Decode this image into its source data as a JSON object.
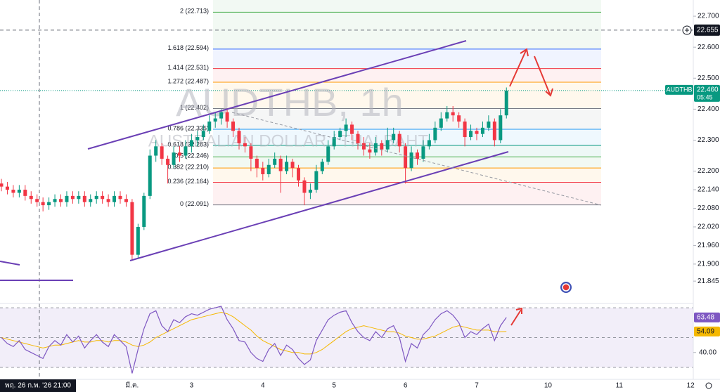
{
  "chart_data": {
    "type": "candlestick",
    "title": "AUDTHB, 1h",
    "subtitle": "AUSTRALIAN DOLLAR / THAI BAHT",
    "up_color": "#089981",
    "down_color": "#f23645",
    "categories": [
      null,
      null,
      null,
      null,
      null,
      null,
      null,
      null,
      null,
      null,
      null,
      null,
      null,
      null,
      null,
      null,
      null,
      null,
      null,
      null,
      null,
      null,
      "มี.ค.",
      null,
      null,
      null,
      null,
      null,
      null,
      null,
      null,
      null,
      "3",
      null,
      null,
      null,
      null,
      null,
      null,
      null,
      null,
      null,
      null,
      null,
      "4",
      null,
      null,
      null,
      null,
      null,
      null,
      null,
      null,
      null,
      null,
      null,
      "5",
      null,
      null,
      null,
      null,
      null,
      null,
      null,
      null,
      null,
      null,
      null,
      "6",
      null,
      null,
      null,
      null,
      null,
      null,
      null,
      null,
      null,
      null,
      null,
      "7",
      null,
      null,
      null,
      null,
      null,
      null,
      null,
      null,
      null,
      null,
      null,
      "10",
      null,
      null,
      null,
      null,
      null,
      null,
      null,
      null,
      null,
      null,
      null,
      "11",
      null,
      null,
      null,
      null,
      null,
      null,
      null,
      null,
      null,
      null,
      null,
      "12"
    ],
    "ohlc": [
      [
        22.16,
        22.175,
        22.135,
        22.15
      ],
      [
        22.15,
        22.165,
        22.125,
        22.14
      ],
      [
        22.14,
        22.155,
        22.115,
        22.13
      ],
      [
        22.13,
        22.155,
        22.115,
        22.14
      ],
      [
        22.14,
        22.155,
        22.105,
        22.12
      ],
      [
        22.12,
        22.135,
        22.095,
        22.11
      ],
      [
        22.11,
        22.125,
        22.085,
        22.1
      ],
      [
        22.1,
        22.115,
        22.07,
        22.09
      ],
      [
        22.09,
        22.115,
        22.075,
        22.1
      ],
      [
        22.1,
        22.125,
        22.085,
        22.11
      ],
      [
        22.11,
        22.125,
        22.085,
        22.1
      ],
      [
        22.1,
        22.135,
        22.085,
        22.12
      ],
      [
        22.12,
        22.135,
        22.095,
        22.11
      ],
      [
        22.11,
        22.135,
        22.095,
        22.12
      ],
      [
        22.12,
        22.135,
        22.085,
        22.1
      ],
      [
        22.1,
        22.125,
        22.085,
        22.11
      ],
      [
        22.11,
        22.135,
        22.095,
        22.12
      ],
      [
        22.12,
        22.135,
        22.095,
        22.11
      ],
      [
        22.11,
        22.125,
        22.085,
        22.1
      ],
      [
        22.1,
        22.135,
        22.085,
        22.12
      ],
      [
        22.12,
        22.135,
        22.095,
        22.11
      ],
      [
        22.11,
        22.125,
        22.085,
        22.1
      ],
      [
        22.1,
        22.11,
        21.915,
        21.93
      ],
      [
        21.93,
        22.03,
        21.92,
        22.02
      ],
      [
        22.02,
        22.13,
        22.01,
        22.12
      ],
      [
        22.12,
        22.27,
        22.11,
        22.25
      ],
      [
        22.25,
        22.3,
        22.23,
        22.28
      ],
      [
        22.28,
        22.29,
        22.22,
        22.24
      ],
      [
        22.24,
        22.25,
        22.16,
        22.22
      ],
      [
        22.22,
        22.28,
        22.21,
        22.26
      ],
      [
        22.26,
        22.28,
        22.23,
        22.25
      ],
      [
        22.25,
        22.3,
        22.24,
        22.28
      ],
      [
        22.28,
        22.32,
        22.26,
        22.3
      ],
      [
        22.3,
        22.33,
        22.28,
        22.31
      ],
      [
        22.31,
        22.35,
        22.3,
        22.33
      ],
      [
        22.33,
        22.38,
        22.32,
        22.36
      ],
      [
        22.36,
        22.39,
        22.34,
        22.37
      ],
      [
        22.37,
        22.4,
        22.35,
        22.39
      ],
      [
        22.39,
        22.4,
        22.34,
        22.36
      ],
      [
        22.36,
        22.37,
        22.31,
        22.33
      ],
      [
        22.33,
        22.34,
        22.27,
        22.29
      ],
      [
        22.29,
        22.31,
        22.26,
        22.28
      ],
      [
        22.28,
        22.29,
        22.2,
        22.24
      ],
      [
        22.24,
        22.25,
        22.18,
        22.21
      ],
      [
        22.21,
        22.23,
        22.17,
        22.19
      ],
      [
        22.19,
        22.24,
        22.18,
        22.22
      ],
      [
        22.22,
        22.26,
        22.21,
        22.24
      ],
      [
        22.24,
        22.25,
        22.13,
        22.2
      ],
      [
        22.2,
        22.25,
        22.19,
        22.23
      ],
      [
        22.23,
        22.24,
        22.18,
        22.21
      ],
      [
        22.21,
        22.22,
        22.15,
        22.17
      ],
      [
        22.17,
        22.18,
        22.09,
        22.13
      ],
      [
        22.13,
        22.16,
        22.11,
        22.14
      ],
      [
        22.14,
        22.22,
        22.13,
        22.2
      ],
      [
        22.2,
        22.24,
        22.19,
        22.23
      ],
      [
        22.23,
        22.3,
        22.22,
        22.28
      ],
      [
        22.28,
        22.33,
        22.27,
        22.31
      ],
      [
        22.31,
        22.34,
        22.3,
        22.33
      ],
      [
        22.33,
        22.37,
        22.31,
        22.35
      ],
      [
        22.35,
        22.36,
        22.3,
        22.32
      ],
      [
        22.32,
        22.33,
        22.27,
        22.29
      ],
      [
        22.29,
        22.31,
        22.25,
        22.27
      ],
      [
        22.27,
        22.29,
        22.24,
        22.26
      ],
      [
        22.26,
        22.31,
        22.25,
        22.29
      ],
      [
        22.29,
        22.3,
        22.25,
        22.27
      ],
      [
        22.27,
        22.34,
        22.26,
        22.3
      ],
      [
        22.3,
        22.34,
        22.29,
        22.32
      ],
      [
        22.32,
        22.33,
        22.26,
        22.28
      ],
      [
        22.28,
        22.29,
        22.16,
        22.21
      ],
      [
        22.21,
        22.28,
        22.2,
        22.26
      ],
      [
        22.26,
        22.27,
        22.22,
        22.24
      ],
      [
        22.24,
        22.3,
        22.23,
        22.28
      ],
      [
        22.28,
        22.32,
        22.27,
        22.3
      ],
      [
        22.3,
        22.36,
        22.29,
        22.34
      ],
      [
        22.34,
        22.39,
        22.33,
        22.37
      ],
      [
        22.37,
        22.41,
        22.36,
        22.39
      ],
      [
        22.39,
        22.41,
        22.36,
        22.38
      ],
      [
        22.38,
        22.39,
        22.34,
        22.36
      ],
      [
        22.36,
        22.37,
        22.28,
        22.31
      ],
      [
        22.31,
        22.35,
        22.3,
        22.33
      ],
      [
        22.33,
        22.34,
        22.3,
        22.32
      ],
      [
        22.32,
        22.36,
        22.31,
        22.34
      ],
      [
        22.34,
        22.38,
        22.33,
        22.36
      ],
      [
        22.36,
        22.37,
        22.28,
        22.3
      ],
      [
        22.3,
        22.4,
        22.29,
        22.38
      ],
      [
        22.38,
        22.47,
        22.37,
        22.46
      ],
      null,
      null,
      null,
      null,
      null,
      null,
      null,
      null,
      null,
      null,
      null,
      null,
      null,
      null,
      null,
      null,
      null,
      null,
      null,
      null,
      null,
      null,
      null,
      null,
      null,
      null,
      null,
      null,
      null,
      null,
      null
    ],
    "ylim": [
      21.7773,
      22.7523
    ],
    "yticks": [
      {
        "value": 22.7,
        "label": "22.700"
      },
      {
        "value": 22.6,
        "label": "22.600"
      },
      {
        "value": 22.5,
        "label": "22.500"
      },
      {
        "value": 22.4,
        "label": "22.400"
      },
      {
        "value": 22.3,
        "label": "22.300"
      },
      {
        "value": 22.2,
        "label": "22.200"
      },
      {
        "value": 22.14,
        "label": "22.140"
      },
      {
        "value": 22.08,
        "label": "22.080"
      },
      {
        "value": 22.02,
        "label": "22.020"
      },
      {
        "value": 21.96,
        "label": "21.960"
      },
      {
        "value": 21.9,
        "label": "21.900"
      },
      {
        "value": 21.845,
        "label": "21.845"
      }
    ],
    "fib": [
      {
        "label": "2 (22.713)",
        "price": 22.713,
        "color": "#4caf50"
      },
      {
        "label": "1.618 (22.594)",
        "price": 22.594,
        "color": "#2962ff"
      },
      {
        "label": "1.414 (22.531)",
        "price": 22.531,
        "color": "#f23645"
      },
      {
        "label": "1.272 (22.487)",
        "price": 22.487,
        "color": "#ff9800"
      },
      {
        "label": "1 (22.402)",
        "price": 22.402,
        "color": "#787b86"
      },
      {
        "label": "0.786 (22.335)",
        "price": 22.335,
        "color": "#2196f3"
      },
      {
        "label": "0.618 (22.283)",
        "price": 22.283,
        "color": "#089981"
      },
      {
        "label": "0.5 (22.246)",
        "price": 22.246,
        "color": "#4caf50"
      },
      {
        "label": "0.382 (22.210)",
        "price": 22.21,
        "color": "#ff9800"
      },
      {
        "label": "0.236 (22.164)",
        "price": 22.164,
        "color": "#f23645"
      },
      {
        "label": "0 (22.091)",
        "price": 22.091,
        "color": "#787b86"
      }
    ],
    "last": {
      "symbol": "AUDTHB",
      "price": {
        "value": 22.46,
        "label": "22.460"
      },
      "countdown": "05:45",
      "color": "#089981"
    },
    "crosshair": {
      "x_label": "พฤ. 26 ก.พ. '26  21:00",
      "price": 22.655
    },
    "rsi": {
      "color": "#7e57c2",
      "values": [
        50,
        46,
        44,
        48,
        42,
        40,
        38,
        36,
        44,
        48,
        45,
        52,
        47,
        51,
        43,
        48,
        52,
        47,
        44,
        52,
        48,
        44,
        26,
        42,
        56,
        66,
        68,
        58,
        54,
        62,
        60,
        64,
        66,
        65,
        67,
        69,
        70,
        71,
        62,
        56,
        48,
        47,
        40,
        36,
        34,
        42,
        46,
        38,
        45,
        42,
        36,
        32,
        35,
        48,
        55,
        62,
        65,
        67,
        68,
        60,
        54,
        50,
        48,
        54,
        50,
        56,
        58,
        50,
        34,
        46,
        43,
        52,
        56,
        62,
        66,
        68,
        65,
        60,
        50,
        54,
        52,
        56,
        59,
        48,
        58,
        63.48,
        null,
        null,
        null,
        null,
        null,
        null,
        null,
        null,
        null,
        null,
        null,
        null,
        null,
        null,
        null,
        null,
        null,
        null,
        null,
        null,
        null,
        null,
        null,
        null,
        null,
        null,
        null,
        null,
        null,
        null,
        null
      ]
    },
    "rsi_ma": {
      "color": "#f5b800",
      "values": [
        50,
        49,
        48,
        47,
        46,
        45,
        44,
        43,
        44,
        45,
        45,
        46,
        47,
        48,
        47,
        47,
        48,
        48,
        47,
        48,
        48,
        47,
        45,
        44,
        45,
        47,
        50,
        52,
        54,
        56,
        58,
        60,
        62,
        63,
        64,
        65,
        66,
        67,
        66,
        64,
        61,
        58,
        55,
        51,
        48,
        46,
        44,
        42,
        41,
        40,
        40,
        39,
        39,
        40,
        42,
        45,
        48,
        51,
        54,
        56,
        57,
        58,
        57,
        56,
        55,
        54,
        54,
        53,
        51,
        50,
        49,
        49,
        50,
        51,
        53,
        55,
        57,
        58,
        57,
        56,
        55,
        55,
        55,
        54,
        54,
        54.09,
        null,
        null,
        null,
        null,
        null,
        null,
        null,
        null,
        null,
        null,
        null,
        null,
        null,
        null,
        null,
        null,
        null,
        null,
        null,
        null,
        null,
        null,
        null,
        null,
        null,
        null,
        null,
        null,
        null,
        null,
        null
      ]
    },
    "rsi_ylim": [
      26.7,
      72.4
    ],
    "rsi_yticks": [
      {
        "value": 40,
        "label": "40.00"
      }
    ],
    "rsi_bands": [
      30,
      50,
      70
    ]
  }
}
